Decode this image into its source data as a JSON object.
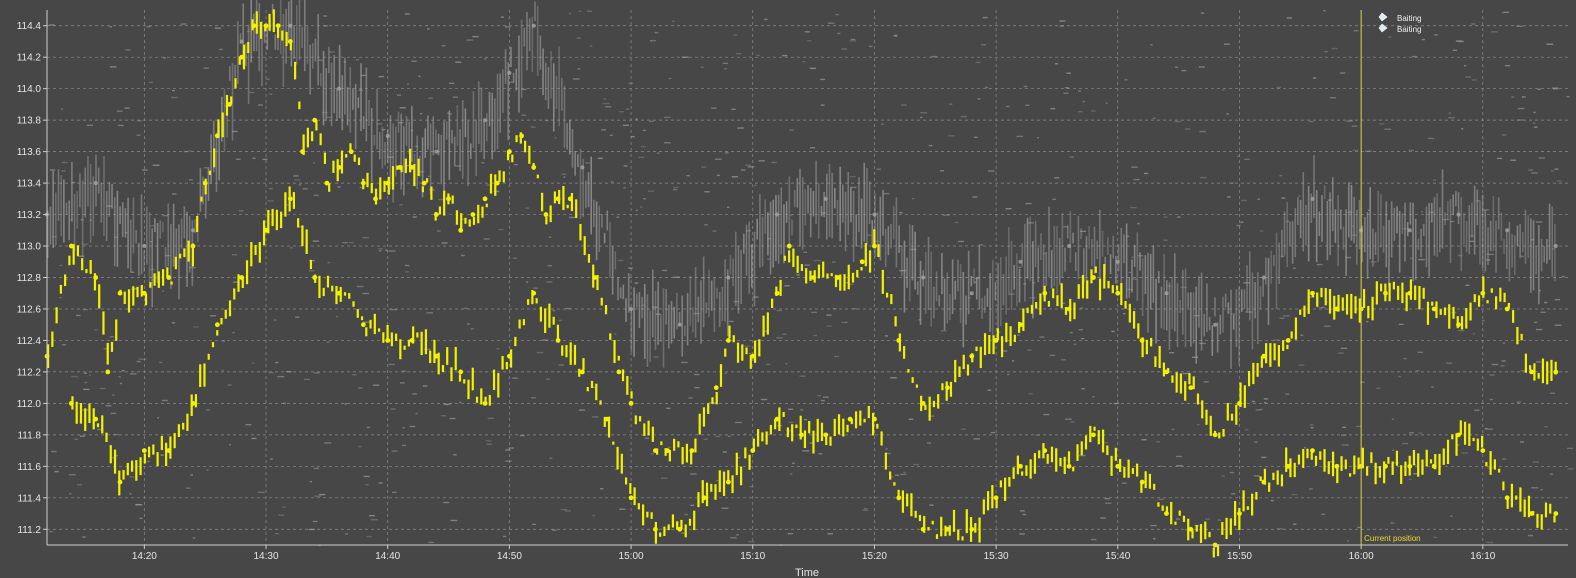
{
  "chart_data": {
    "type": "scatter",
    "title": "",
    "xlabel": "Time",
    "ylabel": "",
    "ylim": [
      111.1,
      114.5
    ],
    "xlim": [
      "14:12",
      "16:17"
    ],
    "grid": true,
    "x_ticks": [
      "14:20",
      "14:30",
      "14:40",
      "14:50",
      "15:00",
      "15:10",
      "15:20",
      "15:30",
      "15:40",
      "15:50",
      "16:00",
      "16:10"
    ],
    "y_ticks": [
      111.2,
      111.4,
      111.6,
      111.8,
      112.0,
      112.2,
      112.4,
      112.6,
      112.8,
      113.0,
      113.2,
      113.4,
      113.6,
      113.8,
      114.0,
      114.2,
      114.4
    ],
    "legend": {
      "placement": "top-right",
      "entries": [
        "Baiting",
        "Baiting"
      ]
    },
    "current_position": {
      "time": "16:00",
      "label": "Current position"
    },
    "colors": {
      "background": "#474747",
      "grid": "#8c8c8c",
      "trades": "#f2f200",
      "depth": "#a5a5a5",
      "current_position": "#d8d24a"
    },
    "series": [
      {
        "name": "",
        "color": "#f2f200",
        "points": [
          [
            "14:12",
            112.3
          ],
          [
            "14:14",
            113.0
          ],
          [
            "14:16",
            112.8
          ],
          [
            "14:17",
            112.2
          ],
          [
            "14:18",
            112.7
          ],
          [
            "14:20",
            112.7
          ],
          [
            "14:22",
            112.8
          ],
          [
            "14:24",
            113.0
          ],
          [
            "14:25",
            113.4
          ],
          [
            "14:26",
            113.7
          ],
          [
            "14:27",
            113.9
          ],
          [
            "14:28",
            114.2
          ],
          [
            "14:29",
            114.4
          ],
          [
            "14:30",
            114.4
          ],
          [
            "14:31",
            114.4
          ],
          [
            "14:32",
            114.3
          ],
          [
            "14:33",
            113.6
          ],
          [
            "14:34",
            113.8
          ],
          [
            "14:35",
            113.4
          ],
          [
            "14:36",
            113.5
          ],
          [
            "14:37",
            113.6
          ],
          [
            "14:38",
            113.4
          ],
          [
            "14:39",
            113.3
          ],
          [
            "14:40",
            113.4
          ],
          [
            "14:41",
            113.5
          ],
          [
            "14:42",
            113.5
          ],
          [
            "14:43",
            113.4
          ],
          [
            "14:44",
            113.2
          ],
          [
            "14:45",
            113.3
          ],
          [
            "14:46",
            113.1
          ],
          [
            "14:47",
            113.2
          ],
          [
            "14:48",
            113.3
          ],
          [
            "14:49",
            113.4
          ],
          [
            "14:50",
            113.6
          ],
          [
            "14:51",
            113.7
          ],
          [
            "14:52",
            113.5
          ],
          [
            "14:53",
            113.2
          ],
          [
            "14:54",
            113.3
          ],
          [
            "14:55",
            113.3
          ],
          [
            "14:57",
            112.8
          ],
          [
            "14:59",
            112.2
          ],
          [
            "15:00",
            112.0
          ],
          [
            "15:02",
            111.7
          ],
          [
            "15:03",
            111.7
          ],
          [
            "15:05",
            111.7
          ],
          [
            "15:07",
            112.1
          ],
          [
            "15:08",
            112.4
          ],
          [
            "15:10",
            112.3
          ],
          [
            "15:12",
            112.7
          ],
          [
            "15:13",
            113.0
          ],
          [
            "15:15",
            112.8
          ],
          [
            "15:17",
            112.8
          ],
          [
            "15:19",
            112.9
          ],
          [
            "15:20",
            113.0
          ],
          [
            "15:22",
            112.4
          ],
          [
            "15:24",
            112.0
          ],
          [
            "15:26",
            112.1
          ],
          [
            "15:28",
            112.3
          ],
          [
            "15:30",
            112.4
          ],
          [
            "15:32",
            112.5
          ],
          [
            "15:34",
            112.7
          ],
          [
            "15:36",
            112.6
          ],
          [
            "15:38",
            112.8
          ],
          [
            "15:40",
            112.7
          ],
          [
            "15:42",
            112.4
          ],
          [
            "15:44",
            112.2
          ],
          [
            "15:46",
            112.1
          ],
          [
            "15:48",
            111.8
          ],
          [
            "15:50",
            112.0
          ],
          [
            "15:52",
            112.3
          ],
          [
            "15:54",
            112.4
          ],
          [
            "15:56",
            112.7
          ],
          [
            "15:58",
            112.6
          ],
          [
            "16:00",
            112.6
          ],
          [
            "16:02",
            112.7
          ],
          [
            "16:04",
            112.7
          ],
          [
            "16:06",
            112.6
          ],
          [
            "16:08",
            112.5
          ],
          [
            "16:10",
            112.7
          ],
          [
            "16:12",
            112.6
          ],
          [
            "16:14",
            112.2
          ],
          [
            "16:16",
            112.2
          ]
        ]
      },
      {
        "name": "",
        "color": "#f2f200",
        "points": [
          [
            "14:14",
            112.0
          ],
          [
            "14:16",
            111.9
          ],
          [
            "14:18",
            111.5
          ],
          [
            "14:20",
            111.7
          ],
          [
            "14:22",
            111.7
          ],
          [
            "14:24",
            112.0
          ],
          [
            "14:26",
            112.5
          ],
          [
            "14:28",
            112.8
          ],
          [
            "14:30",
            113.1
          ],
          [
            "14:32",
            113.3
          ],
          [
            "14:34",
            112.8
          ],
          [
            "14:36",
            112.7
          ],
          [
            "14:38",
            112.5
          ],
          [
            "14:40",
            112.4
          ],
          [
            "14:42",
            112.4
          ],
          [
            "14:44",
            112.3
          ],
          [
            "14:46",
            112.2
          ],
          [
            "14:48",
            112.0
          ],
          [
            "14:50",
            112.3
          ],
          [
            "14:52",
            112.7
          ],
          [
            "14:54",
            112.4
          ],
          [
            "14:56",
            112.2
          ],
          [
            "14:58",
            111.9
          ],
          [
            "15:00",
            111.4
          ],
          [
            "15:02",
            111.2
          ],
          [
            "15:04",
            111.2
          ],
          [
            "15:06",
            111.4
          ],
          [
            "15:08",
            111.5
          ],
          [
            "15:10",
            111.7
          ],
          [
            "15:12",
            111.9
          ],
          [
            "15:14",
            111.8
          ],
          [
            "15:16",
            111.8
          ],
          [
            "15:18",
            111.9
          ],
          [
            "15:20",
            111.9
          ],
          [
            "15:22",
            111.4
          ],
          [
            "15:24",
            111.2
          ],
          [
            "15:26",
            111.2
          ],
          [
            "15:28",
            111.2
          ],
          [
            "15:30",
            111.4
          ],
          [
            "15:32",
            111.6
          ],
          [
            "15:34",
            111.7
          ],
          [
            "15:36",
            111.6
          ],
          [
            "15:38",
            111.8
          ],
          [
            "15:40",
            111.6
          ],
          [
            "15:42",
            111.5
          ],
          [
            "15:44",
            111.3
          ],
          [
            "15:46",
            111.2
          ],
          [
            "15:48",
            111.1
          ],
          [
            "15:50",
            111.3
          ],
          [
            "15:52",
            111.5
          ],
          [
            "15:54",
            111.6
          ],
          [
            "15:56",
            111.7
          ],
          [
            "15:58",
            111.6
          ],
          [
            "16:00",
            111.6
          ],
          [
            "16:02",
            111.6
          ],
          [
            "16:04",
            111.6
          ],
          [
            "16:06",
            111.6
          ],
          [
            "16:08",
            111.8
          ],
          [
            "16:10",
            111.7
          ],
          [
            "16:12",
            111.4
          ],
          [
            "16:14",
            111.3
          ],
          [
            "16:16",
            111.3
          ]
        ]
      },
      {
        "name": "",
        "color": "#a5a5a5",
        "points": [
          [
            "14:12",
            113.2
          ],
          [
            "14:16",
            113.4
          ],
          [
            "14:20",
            113.0
          ],
          [
            "14:24",
            113.1
          ],
          [
            "14:28",
            114.3
          ],
          [
            "14:30",
            114.4
          ],
          [
            "14:32",
            114.4
          ],
          [
            "14:36",
            114.0
          ],
          [
            "14:40",
            113.7
          ],
          [
            "14:44",
            113.6
          ],
          [
            "14:48",
            113.8
          ],
          [
            "14:50",
            114.1
          ],
          [
            "14:52",
            114.4
          ],
          [
            "14:56",
            113.5
          ],
          [
            "15:00",
            112.6
          ],
          [
            "15:04",
            112.5
          ],
          [
            "15:08",
            112.8
          ],
          [
            "15:12",
            113.2
          ],
          [
            "15:16",
            113.3
          ],
          [
            "15:20",
            113.2
          ],
          [
            "15:24",
            112.8
          ],
          [
            "15:28",
            112.7
          ],
          [
            "15:32",
            112.9
          ],
          [
            "15:36",
            113.0
          ],
          [
            "15:40",
            112.9
          ],
          [
            "15:44",
            112.7
          ],
          [
            "15:48",
            112.5
          ],
          [
            "15:52",
            112.8
          ],
          [
            "15:56",
            113.3
          ],
          [
            "16:00",
            113.1
          ],
          [
            "16:04",
            113.1
          ],
          [
            "16:08",
            113.2
          ],
          [
            "16:12",
            113.1
          ],
          [
            "16:16",
            113.0
          ]
        ]
      }
    ]
  }
}
